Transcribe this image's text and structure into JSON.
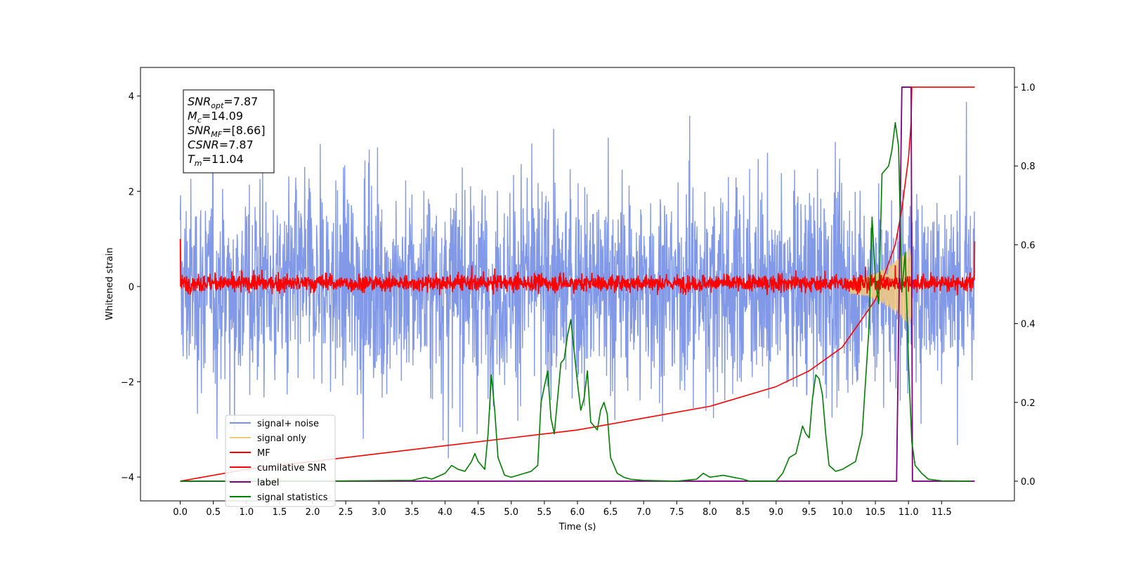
{
  "chart_data": {
    "type": "line",
    "xlabel": "Time (s)",
    "ylabel_left": "Whitened strain",
    "xlim": [
      -0.6,
      12.6
    ],
    "ylim_left": [
      -4.5,
      4.6
    ],
    "ylim_right": [
      -0.05,
      1.05
    ],
    "x_ticks": [
      "0.0",
      "0.5",
      "1.0",
      "1.5",
      "2.0",
      "2.5",
      "3.0",
      "3.5",
      "4.0",
      "4.5",
      "5.0",
      "5.5",
      "6.0",
      "6.5",
      "7.0",
      "7.5",
      "8.0",
      "8.5",
      "9.0",
      "9.5",
      "10.0",
      "10.5",
      "11.0",
      "11.5"
    ],
    "y_ticks_left": [
      "4",
      "2",
      "0",
      "−2",
      "−4"
    ],
    "y_ticks_right": [
      "1.0",
      "0.8",
      "0.6",
      "0.4",
      "0.2",
      "0.0"
    ],
    "annotation": [
      {
        "name": "SNR",
        "sub": "opt",
        "value": "=7.87"
      },
      {
        "name": "M",
        "sub": "c",
        "value": "=14.09"
      },
      {
        "name": "SNR",
        "sub": "MF",
        "value": "=[8.66]"
      },
      {
        "name": "CSNR",
        "sub": "",
        "value": "=7.87"
      },
      {
        "name": "T",
        "sub": "m",
        "value": "=11.04"
      }
    ],
    "legend": {
      "placement": "lower left",
      "entries": [
        {
          "label": "signal+ noise",
          "color": "#7b93e6"
        },
        {
          "label": "signal only",
          "color": "#f5c97a"
        },
        {
          "label": "MF",
          "color": "#ff0000"
        },
        {
          "label": "cumilative SNR",
          "color": "#ff0000"
        },
        {
          "label": "label",
          "color": "#800080"
        },
        {
          "label": "signal statistics",
          "color": "#008000"
        }
      ]
    },
    "series": [
      {
        "name": "signal+ noise",
        "axis": "left",
        "color": "#7b93e6",
        "style": "noise band",
        "x_range": [
          0.0,
          12.0
        ],
        "approx_range": [
          -3.2,
          3.8
        ]
      },
      {
        "name": "signal only",
        "axis": "left",
        "color": "#f5c97a",
        "style": "chirp",
        "x": [
          10.2,
          10.6,
          10.9,
          11.04
        ],
        "amplitude": [
          0.2,
          0.4,
          0.6,
          0.8
        ]
      },
      {
        "name": "MF",
        "axis": "left",
        "color": "#ff0000",
        "style": "noise band",
        "x_range": [
          0.0,
          12.0
        ],
        "approx_range": [
          -0.15,
          0.3
        ]
      },
      {
        "name": "cumilative SNR",
        "axis": "right",
        "color": "#ff0000",
        "x": [
          0.0,
          1.0,
          2.0,
          3.0,
          4.0,
          5.0,
          6.0,
          7.0,
          8.0,
          9.0,
          9.5,
          10.0,
          10.5,
          10.8,
          10.9,
          11.0,
          11.04,
          11.05,
          12.0
        ],
        "values": [
          0.0,
          0.03,
          0.05,
          0.07,
          0.09,
          0.11,
          0.13,
          0.16,
          0.19,
          0.24,
          0.28,
          0.34,
          0.46,
          0.6,
          0.69,
          0.82,
          0.91,
          1.0,
          1.0
        ]
      },
      {
        "name": "label",
        "axis": "right",
        "color": "#800080",
        "x": [
          0.0,
          10.82,
          10.9,
          11.04,
          11.06,
          12.0
        ],
        "values": [
          0.0,
          0.0,
          1.0,
          1.0,
          0.0,
          0.0
        ]
      },
      {
        "name": "signal statistics",
        "axis": "right",
        "color": "#008000",
        "x": [
          0.0,
          2.0,
          3.5,
          3.7,
          3.8,
          4.0,
          4.1,
          4.2,
          4.3,
          4.4,
          4.45,
          4.5,
          4.6,
          4.65,
          4.7,
          4.75,
          4.8,
          4.9,
          5.0,
          5.2,
          5.3,
          5.4,
          5.45,
          5.5,
          5.55,
          5.6,
          5.65,
          5.7,
          5.75,
          5.8,
          5.85,
          5.9,
          5.95,
          6.0,
          6.05,
          6.1,
          6.15,
          6.2,
          6.3,
          6.35,
          6.4,
          6.45,
          6.5,
          6.6,
          6.7,
          6.8,
          7.0,
          7.5,
          7.8,
          7.9,
          8.0,
          8.2,
          8.5,
          8.6,
          9.0,
          9.1,
          9.2,
          9.3,
          9.4,
          9.45,
          9.5,
          9.55,
          9.6,
          9.65,
          9.7,
          9.75,
          9.8,
          9.9,
          10.0,
          10.2,
          10.3,
          10.4,
          10.45,
          10.5,
          10.55,
          10.6,
          10.65,
          10.7,
          10.75,
          10.8,
          10.85,
          10.9,
          10.95,
          11.0,
          11.05,
          11.1,
          11.2,
          11.3,
          11.5,
          11.95
        ],
        "values": [
          0.0,
          0.0,
          0.002,
          0.01,
          0.005,
          0.02,
          0.04,
          0.03,
          0.025,
          0.05,
          0.07,
          0.05,
          0.03,
          0.12,
          0.27,
          0.18,
          0.06,
          0.015,
          0.01,
          0.02,
          0.025,
          0.04,
          0.2,
          0.24,
          0.28,
          0.16,
          0.12,
          0.21,
          0.3,
          0.31,
          0.37,
          0.41,
          0.33,
          0.25,
          0.18,
          0.21,
          0.28,
          0.15,
          0.13,
          0.18,
          0.2,
          0.17,
          0.06,
          0.02,
          0.01,
          0.005,
          0.002,
          0.0,
          0.005,
          0.02,
          0.01,
          0.015,
          0.005,
          0.0,
          0.0,
          0.02,
          0.06,
          0.07,
          0.14,
          0.12,
          0.11,
          0.21,
          0.27,
          0.26,
          0.22,
          0.12,
          0.04,
          0.025,
          0.03,
          0.05,
          0.12,
          0.38,
          0.67,
          0.51,
          0.45,
          0.78,
          0.79,
          0.8,
          0.84,
          0.91,
          0.85,
          0.48,
          0.58,
          0.3,
          0.1,
          0.04,
          0.02,
          0.005,
          0.001,
          0.0
        ]
      }
    ]
  }
}
